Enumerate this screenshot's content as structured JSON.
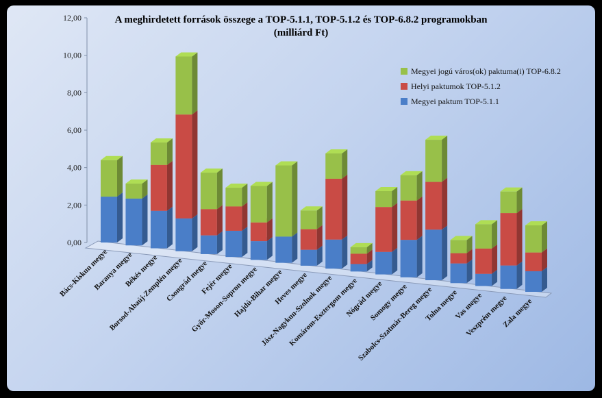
{
  "chart_data": {
    "type": "bar",
    "stacked": true,
    "title": "A meghirdetett források összege a TOP-5.1.1, TOP-5.1.2 és TOP-6.8.2 programokban",
    "subtitle": "(milliárd Ft)",
    "ylim": [
      0,
      12
    ],
    "yticks": [
      "0,00",
      "2,00",
      "4,00",
      "6,00",
      "8,00",
      "10,00",
      "12,00"
    ],
    "categories": [
      "Bács-Kiskun megye",
      "Baranya megye",
      "Békés megye",
      "Borsod-Abaúj-Zemplén megye",
      "Csongrád megye",
      "Fejér megye",
      "Győr-Moson-Sopron megye",
      "Hajdú-Bihar megye",
      "Heves megye",
      "Jász-Nagykun-Szolnok megye",
      "Komárom-Esztergom megye",
      "Nógrád megye",
      "Somogy megye",
      "Szabolcs-Szatmár-Bereg megye",
      "Tolna megye",
      "Vas megye",
      "Veszprém megye",
      "Zala megye"
    ],
    "series": [
      {
        "name": "Megyei paktum TOP-5.1.1",
        "color": "#4a7ec8",
        "values": [
          2.45,
          2.5,
          2.0,
          1.75,
          1.0,
          1.4,
          1.0,
          1.4,
          0.85,
          1.55,
          0.4,
          1.2,
          2.0,
          2.7,
          1.05,
          0.65,
          1.25,
          1.1
        ]
      },
      {
        "name": "Helyi paktumok TOP-5.1.2",
        "color": "#c94b45",
        "values": [
          0.0,
          0.0,
          2.45,
          5.55,
          1.4,
          1.3,
          1.0,
          0.0,
          1.1,
          3.25,
          0.55,
          2.4,
          2.1,
          2.55,
          0.55,
          1.35,
          2.8,
          1.0
        ]
      },
      {
        "name": "Megyei jogú város(ok) paktuma(i) TOP-6.8.2",
        "color": "#98c049",
        "values": [
          1.95,
          0.8,
          1.2,
          3.1,
          1.95,
          1.0,
          1.95,
          3.8,
          1.0,
          1.35,
          0.35,
          0.85,
          1.35,
          2.25,
          0.7,
          1.3,
          1.15,
          1.45
        ]
      }
    ],
    "legend": "right",
    "legend_order": [
      2,
      1,
      0
    ],
    "grid": false
  }
}
